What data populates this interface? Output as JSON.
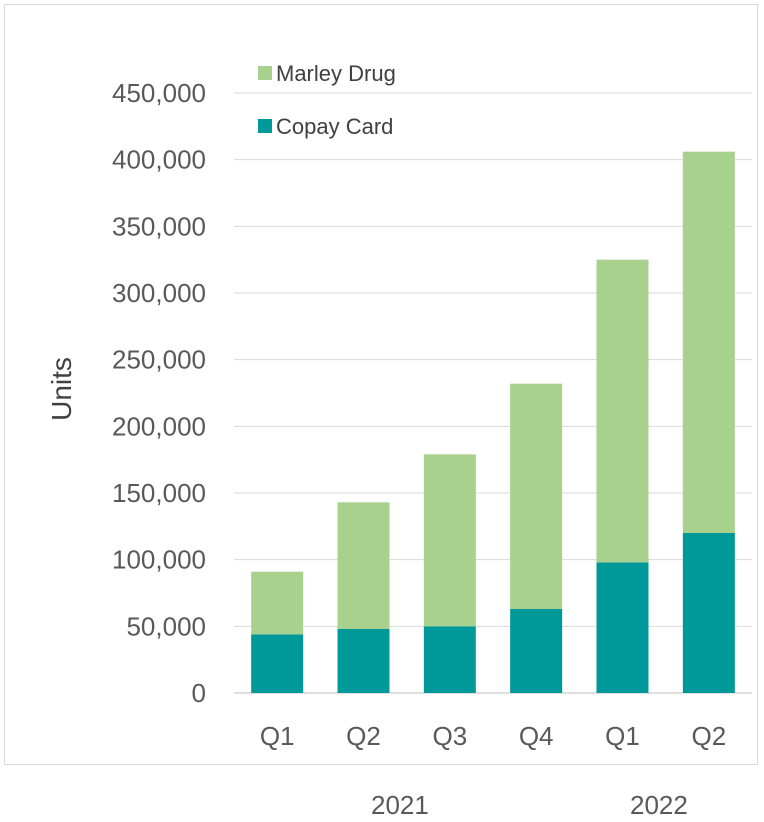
{
  "chart_data": {
    "type": "bar",
    "stacked": true,
    "categories": [
      "Q1",
      "Q2",
      "Q3",
      "Q4",
      "Q1",
      "Q2"
    ],
    "year_labels": [
      "2021",
      "2022"
    ],
    "series": [
      {
        "name": "Copay Card",
        "color": "#009999",
        "values": [
          44000,
          48000,
          50000,
          63000,
          98000,
          120000
        ]
      },
      {
        "name": "Marley Drug",
        "color": "#a9d18e",
        "values": [
          47000,
          95000,
          129000,
          169000,
          227000,
          286000
        ]
      }
    ],
    "legend_order": [
      "Marley Drug",
      "Copay Card"
    ],
    "legend_position": "top-left",
    "ylabel": "Units",
    "ylim": [
      0,
      450000
    ],
    "y_ticks": [
      "0",
      "50,000",
      "100,000",
      "150,000",
      "200,000",
      "250,000",
      "300,000",
      "350,000",
      "400,000",
      "450,000"
    ],
    "y_tick_values": [
      0,
      50000,
      100000,
      150000,
      200000,
      250000,
      300000,
      350000,
      400000,
      450000
    ],
    "grid": true
  }
}
